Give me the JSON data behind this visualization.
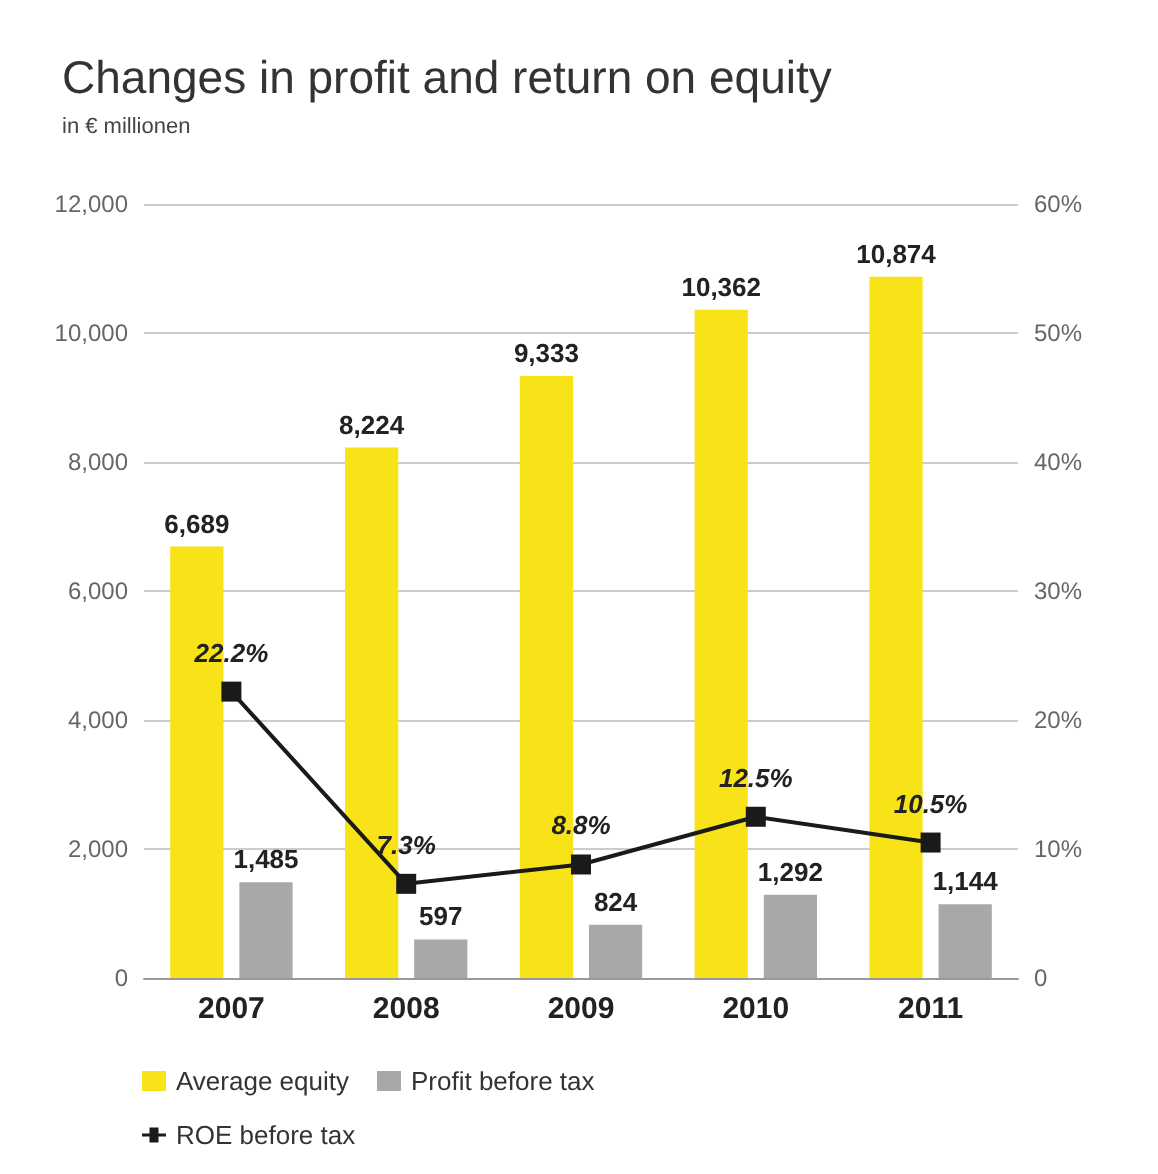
{
  "chart_data": {
    "type": "bar",
    "title": "Changes in profit and return on equity",
    "subtitle": "in € millionen",
    "categories": [
      "2007",
      "2008",
      "2009",
      "2010",
      "2011"
    ],
    "series": [
      {
        "name": "Average equity",
        "color": "#f7e318",
        "values": [
          6689,
          8224,
          9333,
          10362,
          10874
        ],
        "value_labels": [
          "6,689",
          "8,224",
          "9,333",
          "10,362",
          "10,874"
        ]
      },
      {
        "name": "Profit before tax",
        "color": "#a8a8a8",
        "values": [
          1485,
          597,
          824,
          1292,
          1144
        ],
        "value_labels": [
          "1,485",
          "597",
          "824",
          "1,292",
          "1,144"
        ]
      },
      {
        "name": "ROE before tax",
        "type": "line",
        "axis": "y2",
        "color": "#1a1a1a",
        "marker": "square",
        "values": [
          22.2,
          7.3,
          8.8,
          12.5,
          10.5
        ],
        "value_labels": [
          "22.2%",
          "7.3%",
          "8.8%",
          "12.5%",
          "10.5%"
        ]
      }
    ],
    "ylim": [
      0,
      12000
    ],
    "yticks": [
      0,
      {
        "value": 2000,
        "label": "2,000"
      },
      {
        "value": 4000,
        "label": "4,000"
      },
      {
        "value": 6000,
        "label": "6,000"
      },
      {
        "value": 8000,
        "label": "8,000"
      },
      {
        "value": 10000,
        "label": "10,000"
      },
      {
        "value": 12000,
        "label": "12,000"
      }
    ],
    "y2lim": [
      0,
      60
    ],
    "y2ticks": [
      0,
      {
        "value": 10,
        "label": "10%"
      },
      {
        "value": 20,
        "label": "20%"
      },
      {
        "value": 30,
        "label": "30%"
      },
      {
        "value": 40,
        "label": "40%"
      },
      {
        "value": 50,
        "label": "50%"
      },
      {
        "value": 60,
        "label": "60%"
      }
    ],
    "grid": "y",
    "legend": "bottom left"
  }
}
